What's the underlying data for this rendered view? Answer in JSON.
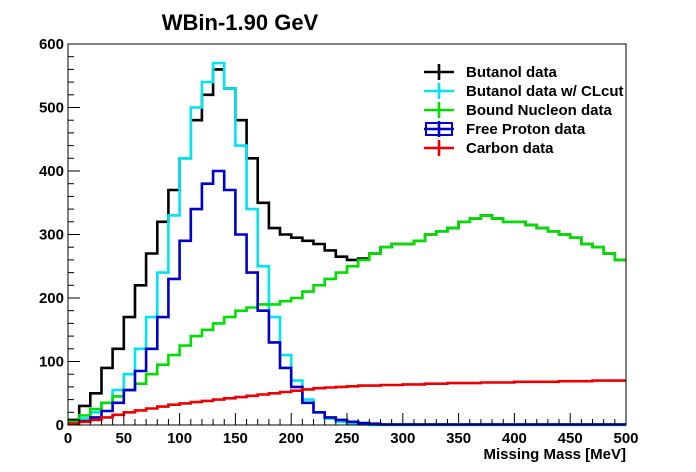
{
  "chart_data": {
    "type": "line",
    "title": "WBin-1.90 GeV",
    "xlabel": "Missing Mass [MeV]",
    "ylabel": "",
    "xlim": [
      0,
      500
    ],
    "ylim": [
      0,
      600
    ],
    "x_ticks": [
      0,
      50,
      100,
      150,
      200,
      250,
      300,
      350,
      400,
      450,
      500
    ],
    "y_ticks": [
      0,
      100,
      200,
      300,
      400,
      500,
      600
    ],
    "grid": false,
    "legend_position": "top-right",
    "x": [
      5,
      15,
      25,
      35,
      45,
      55,
      65,
      75,
      85,
      95,
      105,
      115,
      125,
      135,
      145,
      155,
      165,
      175,
      185,
      195,
      205,
      215,
      225,
      235,
      245,
      255,
      265,
      275,
      285,
      295,
      305,
      315,
      325,
      335,
      345,
      355,
      365,
      375,
      385,
      395,
      405,
      415,
      425,
      435,
      445,
      455,
      465,
      475,
      485,
      495
    ],
    "series": [
      {
        "name": "Butanol data",
        "color": "#000000",
        "values": [
          8,
          30,
          50,
          90,
          120,
          170,
          220,
          270,
          320,
          370,
          420,
          480,
          520,
          560,
          530,
          480,
          420,
          350,
          310,
          300,
          295,
          290,
          285,
          275,
          265,
          260,
          262,
          270,
          280,
          285,
          285,
          290,
          300,
          305,
          310,
          320,
          325,
          330,
          325,
          320,
          320,
          315,
          310,
          305,
          300,
          295,
          285,
          280,
          270,
          260
        ]
      },
      {
        "name": "Butanol data w/ CLcut",
        "color": "#00e5ee",
        "values": [
          3,
          10,
          20,
          35,
          55,
          80,
          120,
          170,
          240,
          330,
          420,
          500,
          540,
          570,
          530,
          440,
          340,
          250,
          170,
          110,
          70,
          40,
          20,
          10,
          5,
          2,
          1,
          0,
          0,
          0,
          0,
          0,
          0,
          0,
          0,
          0,
          0,
          0,
          0,
          0,
          0,
          0,
          0,
          0,
          0,
          0,
          0,
          0,
          0,
          0
        ]
      },
      {
        "name": "Bound Nucleon data",
        "color": "#00e000",
        "values": [
          5,
          15,
          25,
          35,
          45,
          55,
          65,
          80,
          95,
          110,
          125,
          140,
          150,
          160,
          170,
          180,
          185,
          190,
          190,
          195,
          200,
          210,
          220,
          230,
          240,
          250,
          260,
          270,
          280,
          285,
          285,
          290,
          300,
          305,
          310,
          320,
          325,
          330,
          325,
          320,
          320,
          315,
          310,
          305,
          300,
          295,
          285,
          280,
          270,
          260
        ]
      },
      {
        "name": "Free Proton data",
        "color": "#0000cc",
        "values": [
          2,
          6,
          12,
          22,
          35,
          55,
          85,
          120,
          170,
          230,
          290,
          340,
          380,
          400,
          370,
          300,
          240,
          180,
          130,
          90,
          60,
          35,
          20,
          12,
          8,
          5,
          3,
          2,
          1,
          1,
          1,
          1,
          1,
          1,
          1,
          1,
          1,
          1,
          1,
          1,
          1,
          1,
          1,
          1,
          1,
          1,
          1,
          1,
          1,
          1
        ]
      },
      {
        "name": "Carbon data",
        "color": "#ee0000",
        "values": [
          2,
          5,
          8,
          12,
          16,
          20,
          23,
          26,
          29,
          32,
          34,
          36,
          38,
          40,
          42,
          44,
          46,
          48,
          50,
          52,
          54,
          56,
          58,
          59,
          60,
          61,
          62,
          62,
          63,
          63,
          64,
          64,
          65,
          65,
          66,
          66,
          66,
          67,
          67,
          67,
          68,
          68,
          68,
          68,
          69,
          69,
          69,
          70,
          70,
          70
        ]
      }
    ]
  }
}
